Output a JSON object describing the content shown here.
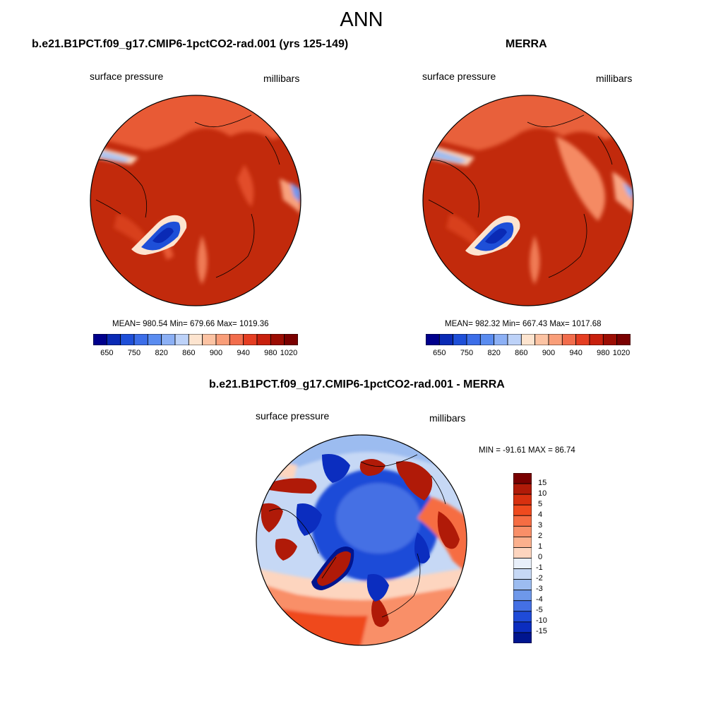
{
  "figure": {
    "title": "ANN"
  },
  "panels": [
    {
      "title": "b.e21.B1PCT.f09_g17.CMIP6-1pctCO2-rad.001 (yrs 125-149)",
      "variable": "surface pressure",
      "units": "millibars",
      "stats": "MEAN= 980.54  Min= 679.66  Max= 1019.36"
    },
    {
      "title": "MERRA",
      "variable": "surface pressure",
      "units": "millibars",
      "stats": "MEAN= 982.32  Min= 667.43  Max= 1017.68"
    },
    {
      "title": "b.e21.B1PCT.f09_g17.CMIP6-1pctCO2-rad.001 - MERRA",
      "variable": "surface pressure",
      "units": "millibars",
      "stats": "MIN = -91.61 MAX =  86.74"
    }
  ],
  "colorbars": {
    "field": {
      "colors": [
        "#00008c",
        "#0a2ab5",
        "#1e4fd8",
        "#3c6ee8",
        "#5a8cf0",
        "#8cb0f5",
        "#bdd2f8",
        "#fde4cf",
        "#fcc3a3",
        "#f99e79",
        "#f26d4c",
        "#e53e22",
        "#c8200d",
        "#9c0d03",
        "#7a0000"
      ],
      "labels": [
        "650",
        "750",
        "820",
        "860",
        "900",
        "940",
        "980",
        "1020"
      ]
    },
    "diff": {
      "colors": [
        "#7a0000",
        "#b01a08",
        "#d8300f",
        "#ef4a1e",
        "#f66d43",
        "#f98f68",
        "#fbb08d",
        "#fdd5bf",
        "#e8effa",
        "#c6d8f5",
        "#9cbcf0",
        "#6e98ea",
        "#4470e4",
        "#1f4bd8",
        "#0b2dbf",
        "#00158f"
      ],
      "labels": [
        "15",
        "10",
        "5",
        "4",
        "3",
        "2",
        "1",
        "0",
        "-1",
        "-2",
        "-3",
        "-4",
        "-5",
        "-10",
        "-15"
      ]
    }
  }
}
